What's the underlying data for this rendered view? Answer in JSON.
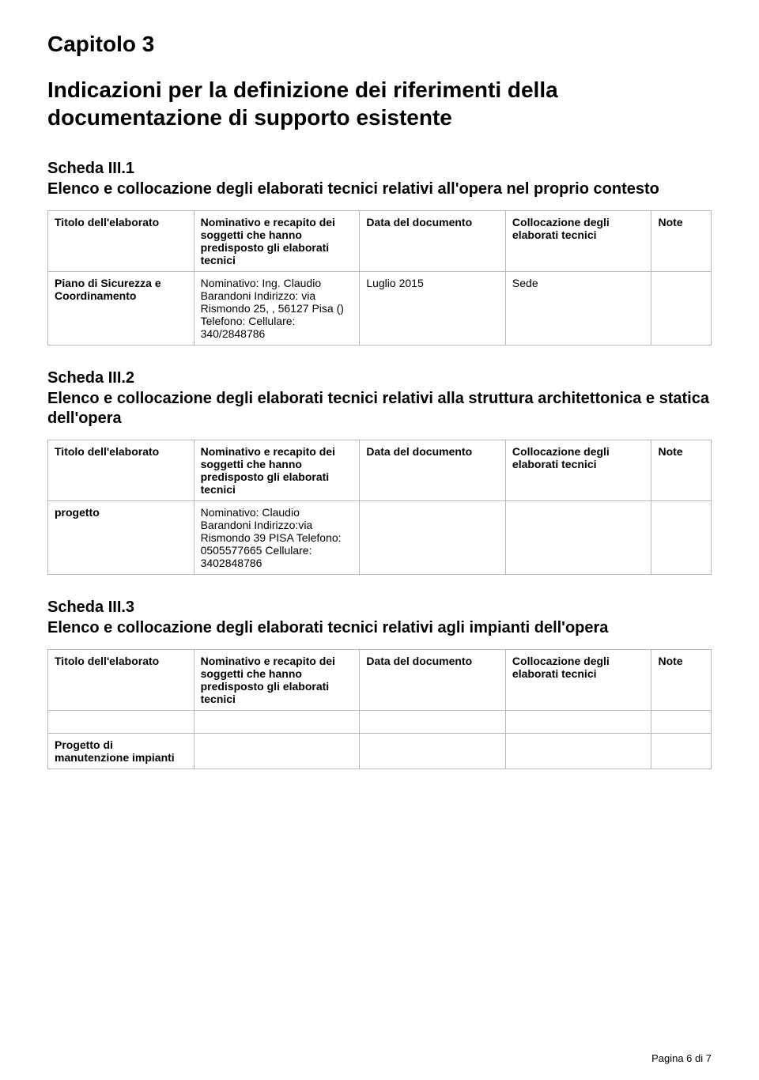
{
  "chapter": "Capitolo 3",
  "doc_title": "Indicazioni per la definizione dei riferimenti della documentazione di supporto esistente",
  "section1": {
    "heading": "Scheda III.1",
    "subheading": "Elenco e collocazione degli elaborati tecnici relativi all'opera nel proprio contesto",
    "headers": {
      "c1": "Titolo dell'elaborato",
      "c2": "Nominativo e recapito dei soggetti che hanno predisposto gli elaborati tecnici",
      "c3": "Data del documento",
      "c4": "Collocazione degli elaborati tecnici",
      "c5": "Note"
    },
    "row": {
      "c1": "Piano di Sicurezza e Coordinamento",
      "c2": "Nominativo: Ing. Claudio Barandoni Indirizzo: via Rismondo 25, , 56127 Pisa () Telefono: Cellulare: 340/2848786",
      "c3": "Luglio 2015",
      "c4": "Sede",
      "c5": ""
    }
  },
  "section2": {
    "heading": "Scheda III.2",
    "subheading": "Elenco e collocazione degli elaborati tecnici relativi alla struttura architettonica e statica dell'opera",
    "headers": {
      "c1": "Titolo dell'elaborato",
      "c2": "Nominativo e recapito dei soggetti che hanno predisposto gli elaborati tecnici",
      "c3": "Data del documento",
      "c4": "Collocazione degli elaborati tecnici",
      "c5": "Note"
    },
    "row": {
      "c1": "progetto",
      "c2": "Nominativo: Claudio Barandoni Indirizzo:via Rismondo 39 PISA Telefono: 0505577665 Cellulare: 3402848786",
      "c3": "",
      "c4": "",
      "c5": ""
    }
  },
  "section3": {
    "heading": "Scheda III.3",
    "subheading": "Elenco e collocazione degli elaborati tecnici relativi agli impianti dell'opera",
    "headers": {
      "c1": "Titolo dell'elaborato",
      "c2": "Nominativo e recapito dei soggetti che hanno predisposto gli elaborati tecnici",
      "c3": "Data del documento",
      "c4": "Collocazione degli elaborati tecnici",
      "c5": "Note"
    },
    "row": {
      "c1": "Progetto di manutenzione impianti",
      "c2": "",
      "c3": "",
      "c4": "",
      "c5": ""
    }
  },
  "footer": "Pagina 6 di 7"
}
